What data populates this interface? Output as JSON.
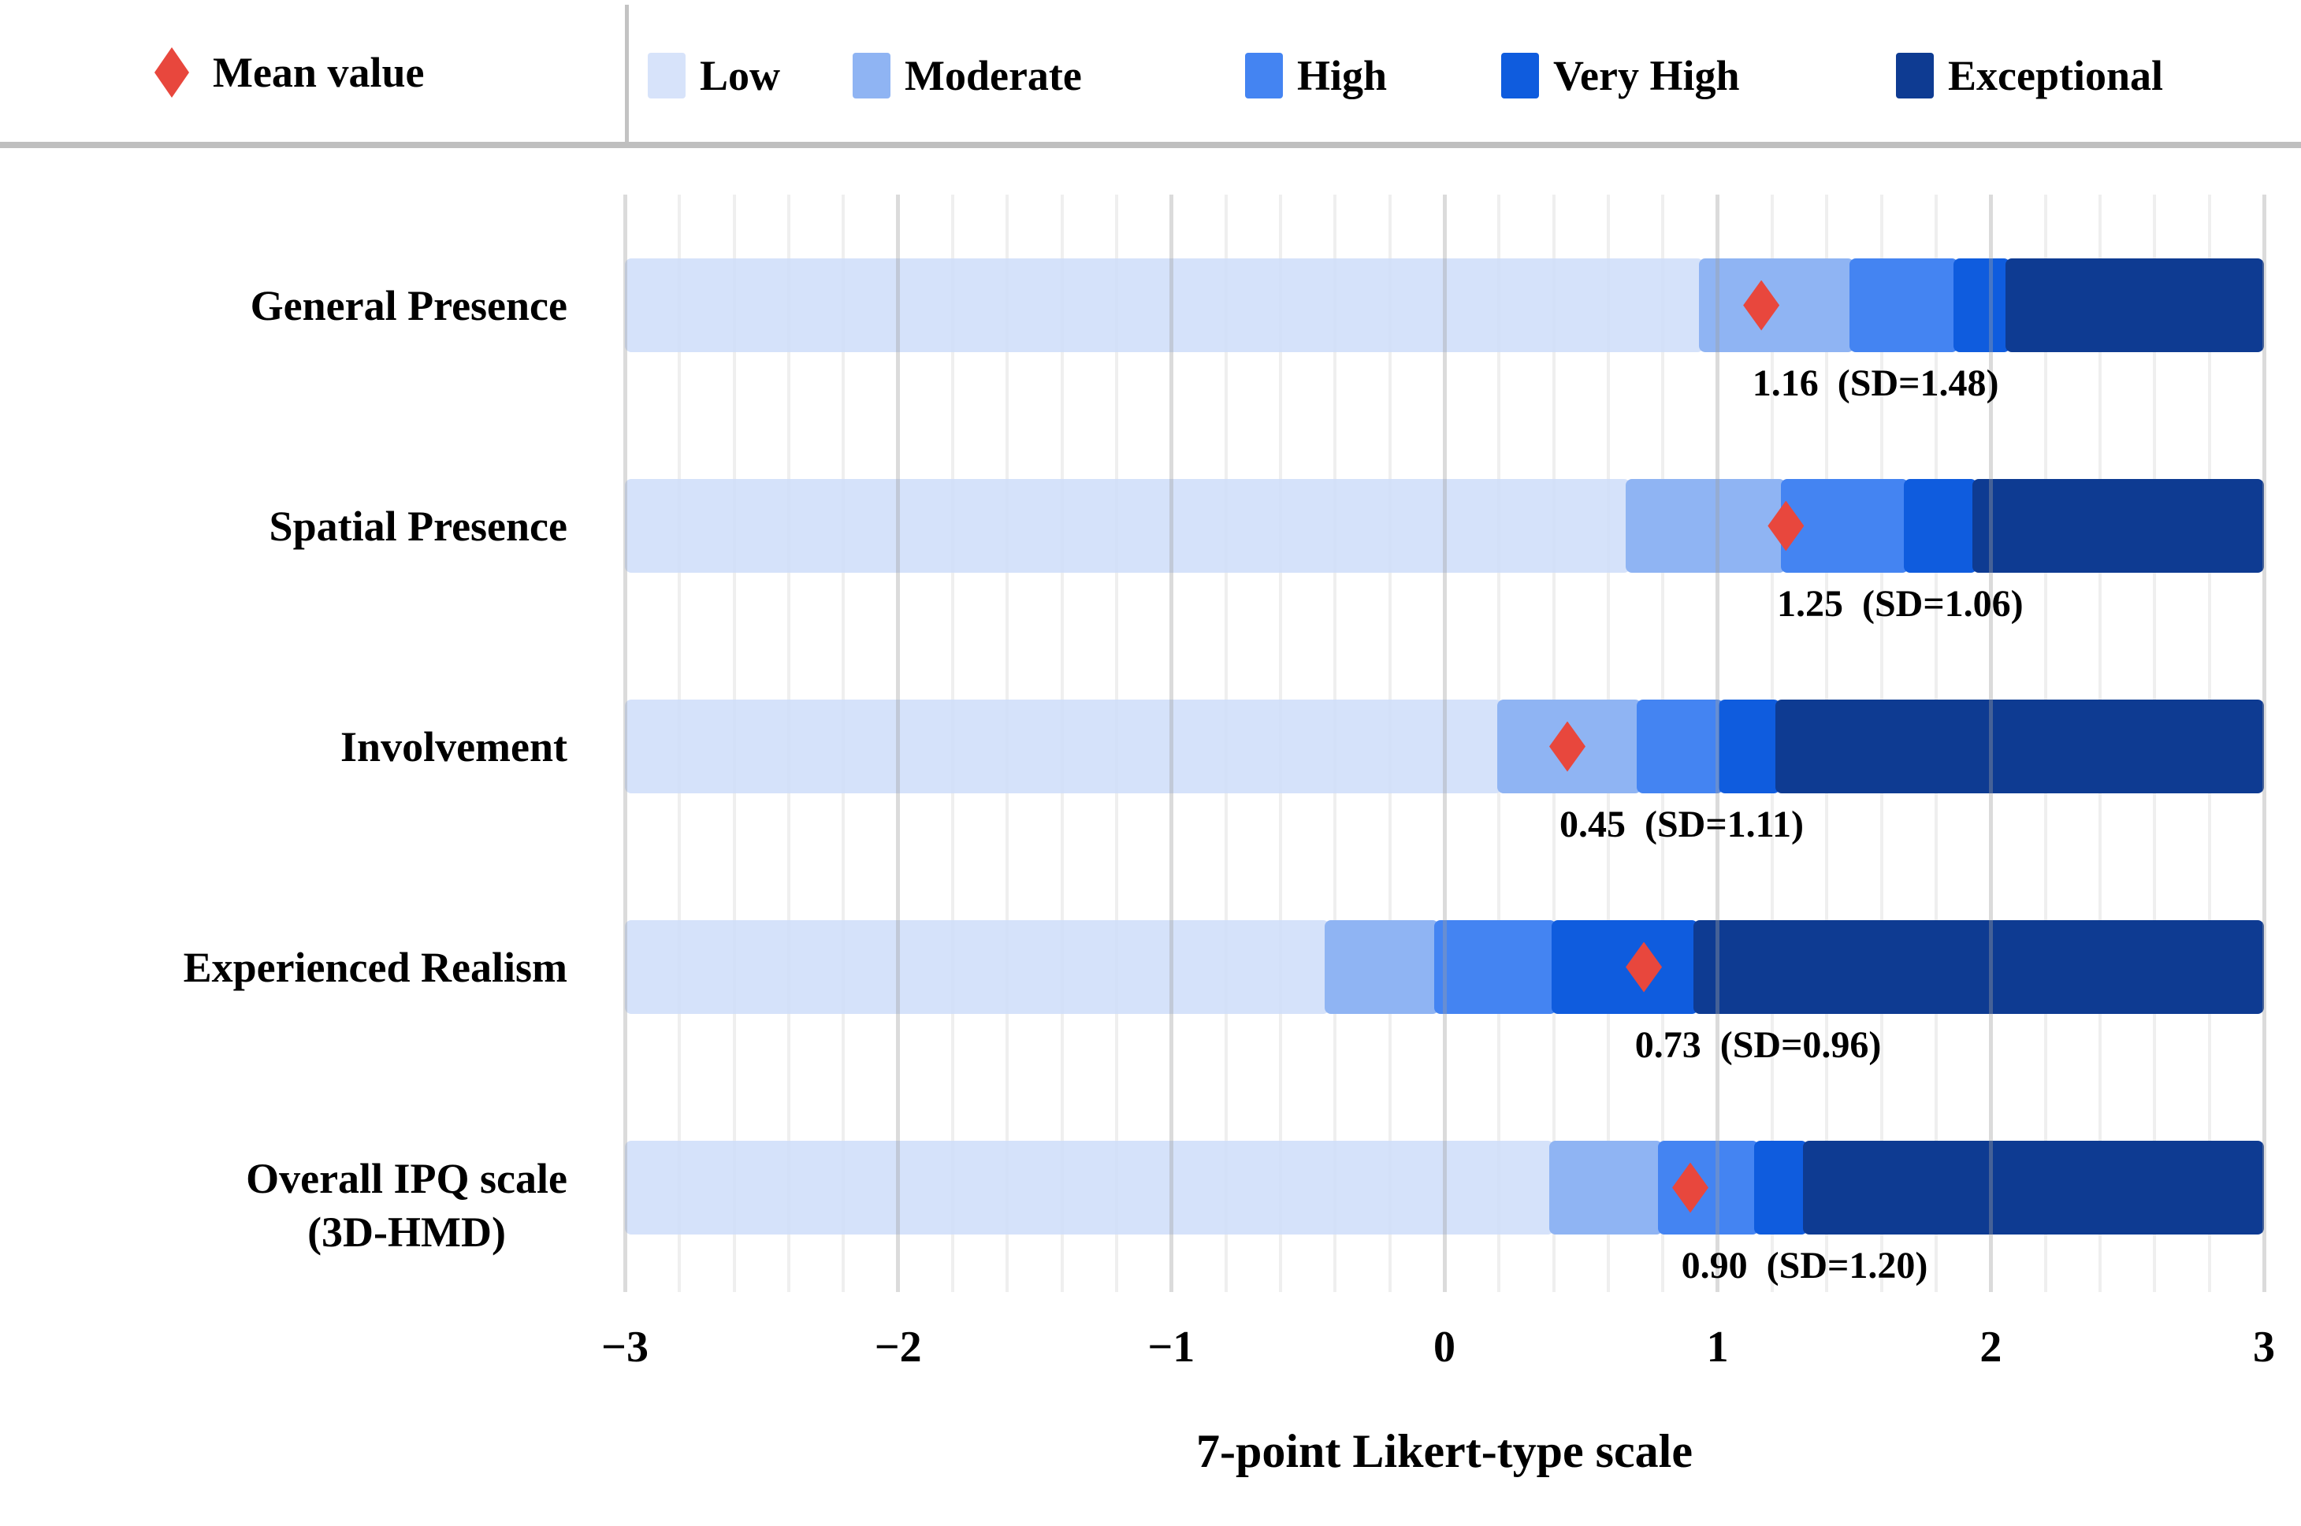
{
  "legend": {
    "mean": {
      "label": "Mean value",
      "color": "#E8473D"
    },
    "items": [
      {
        "label": "Low",
        "color": "#D7E3FA"
      },
      {
        "label": "Moderate",
        "color": "#8FB4F3"
      },
      {
        "label": "High",
        "color": "#4484F2"
      },
      {
        "label": "Very High",
        "color": "#0F5CDE"
      },
      {
        "label": "Exceptional",
        "color": "#0E3B92"
      }
    ]
  },
  "chart_data": {
    "type": "bar",
    "subtype": "horizontal-stacked-likert",
    "xlabel": "7-point Likert-type scale",
    "xlim": [
      -3,
      3
    ],
    "x_tick_values": [
      -3,
      -2,
      -1,
      0,
      1,
      2,
      3
    ],
    "x_ticks": [
      "−3",
      "−2",
      "−1",
      "0",
      "1",
      "2",
      "3"
    ],
    "minor_grid_step": 0.2,
    "grid": "on",
    "legend_position": "top",
    "series_names": [
      "Low",
      "Moderate",
      "High",
      "Very High",
      "Exceptional"
    ],
    "rows": [
      {
        "category_lines": [
          "General Presence"
        ],
        "boundaries": [
          -3,
          0.95,
          1.5,
          1.88,
          2.07,
          3
        ],
        "mean": 1.16,
        "sd": 1.48,
        "annotation": "1.16  (SD=1.48)"
      },
      {
        "category_lines": [
          "Spatial Presence"
        ],
        "boundaries": [
          -3,
          0.68,
          1.25,
          1.7,
          1.95,
          3
        ],
        "mean": 1.25,
        "sd": 1.06,
        "annotation": "1.25  (SD=1.06)"
      },
      {
        "category_lines": [
          "Involvement"
        ],
        "boundaries": [
          -3,
          0.21,
          0.72,
          1.02,
          1.23,
          3
        ],
        "mean": 0.45,
        "sd": 1.11,
        "annotation": "0.45  (SD=1.11)"
      },
      {
        "category_lines": [
          "Experienced Realism"
        ],
        "boundaries": [
          -3,
          -0.42,
          -0.02,
          0.41,
          0.93,
          3
        ],
        "mean": 0.73,
        "sd": 0.96,
        "annotation": "0.73  (SD=0.96)"
      },
      {
        "category_lines": [
          "Overall IPQ scale",
          "(3D-HMD)"
        ],
        "boundaries": [
          -3,
          0.4,
          0.8,
          1.15,
          1.33,
          3
        ],
        "mean": 0.9,
        "sd": 1.2,
        "annotation": "0.90  (SD=1.20)"
      }
    ]
  }
}
